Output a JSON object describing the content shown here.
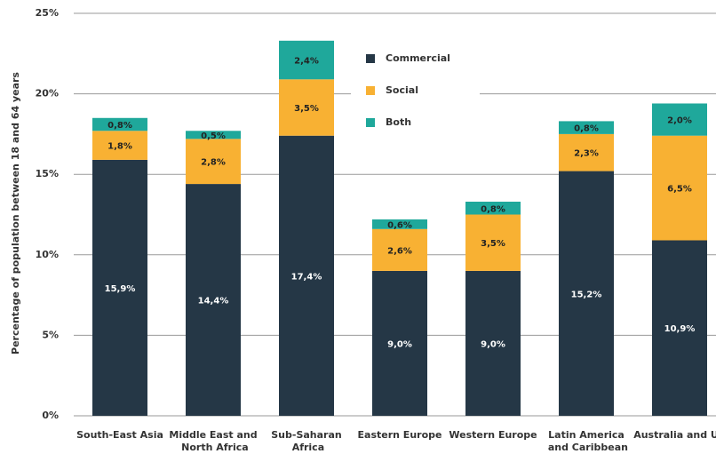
{
  "chart_data": {
    "type": "stacked_bar",
    "y_label": "Percentage of population between 18 and 64 years",
    "categories": [
      "South-East Asia",
      "Middle East and North Africa",
      "Sub-Saharan Africa",
      "Eastern Europe",
      "Western Europe",
      "Latin America and Caribbean",
      "Australia and US"
    ],
    "series": [
      {
        "name": "Commercial",
        "color": "#253746",
        "values": [
          15.9,
          14.4,
          17.4,
          9.0,
          9.0,
          15.2,
          10.9
        ],
        "value_labels": [
          "15,9%",
          "14,4%",
          "17,4%",
          "9,0%",
          "9,0%",
          "15,2%",
          "10,9%"
        ]
      },
      {
        "name": "Social",
        "color": "#f8b133",
        "values": [
          1.8,
          2.8,
          3.5,
          2.6,
          3.5,
          2.3,
          6.5
        ],
        "value_labels": [
          "1,8%",
          "2,8%",
          "3,5%",
          "2,6%",
          "3,5%",
          "2,3%",
          "6,5%"
        ]
      },
      {
        "name": "Both",
        "color": "#1fa89b",
        "values": [
          0.8,
          0.5,
          2.4,
          0.6,
          0.8,
          0.8,
          2.0
        ],
        "value_labels": [
          "0,8%",
          "0,5%",
          "2,4%",
          "0,6%",
          "0,8%",
          "0,8%",
          "2,0%"
        ]
      }
    ],
    "ylim": [
      0,
      25
    ],
    "yticks": [
      {
        "value": 0,
        "label": "0%"
      },
      {
        "value": 5,
        "label": "5%"
      },
      {
        "value": 10,
        "label": "10%"
      },
      {
        "value": 15,
        "label": "15%"
      },
      {
        "value": 20,
        "label": "20%"
      },
      {
        "value": 25,
        "label": "25%"
      }
    ],
    "grid": true,
    "legend": "top"
  }
}
